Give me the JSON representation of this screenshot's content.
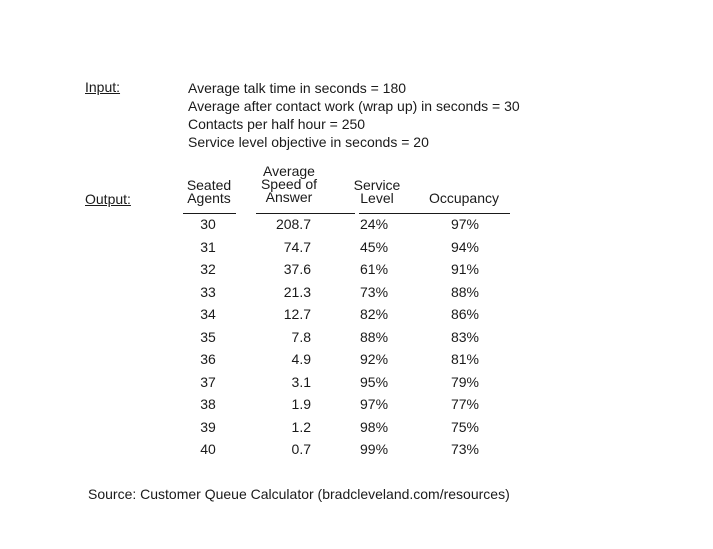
{
  "input_label": "Input:",
  "output_label": "Output:",
  "inputs": [
    "Average talk time in seconds = 180",
    "Average after contact work (wrap up) in seconds = 30",
    "Contacts per half hour = 250",
    "Service level objective in seconds = 20"
  ],
  "table": {
    "headers": {
      "agents": [
        "Seated",
        "Agents"
      ],
      "asa": [
        "Average",
        "Speed of",
        "Answer"
      ],
      "service_level": [
        "Service",
        "Level"
      ],
      "occupancy": [
        "Occupancy"
      ]
    },
    "rows": [
      {
        "agents": "30",
        "asa": "208.7",
        "service_level": "24%",
        "occupancy": "97%"
      },
      {
        "agents": "31",
        "asa": "74.7",
        "service_level": "45%",
        "occupancy": "94%"
      },
      {
        "agents": "32",
        "asa": "37.6",
        "service_level": "61%",
        "occupancy": "91%"
      },
      {
        "agents": "33",
        "asa": "21.3",
        "service_level": "73%",
        "occupancy": "88%"
      },
      {
        "agents": "34",
        "asa": "12.7",
        "service_level": "82%",
        "occupancy": "86%"
      },
      {
        "agents": "35",
        "asa": "7.8",
        "service_level": "88%",
        "occupancy": "83%"
      },
      {
        "agents": "36",
        "asa": "4.9",
        "service_level": "92%",
        "occupancy": "81%"
      },
      {
        "agents": "37",
        "asa": "3.1",
        "service_level": "95%",
        "occupancy": "79%"
      },
      {
        "agents": "38",
        "asa": "1.9",
        "service_level": "97%",
        "occupancy": "77%"
      },
      {
        "agents": "39",
        "asa": "1.2",
        "service_level": "98%",
        "occupancy": "75%"
      },
      {
        "agents": "40",
        "asa": "0.7",
        "service_level": "99%",
        "occupancy": "73%"
      }
    ]
  },
  "source": "Source: Customer Queue Calculator (bradcleveland.com/resources)"
}
